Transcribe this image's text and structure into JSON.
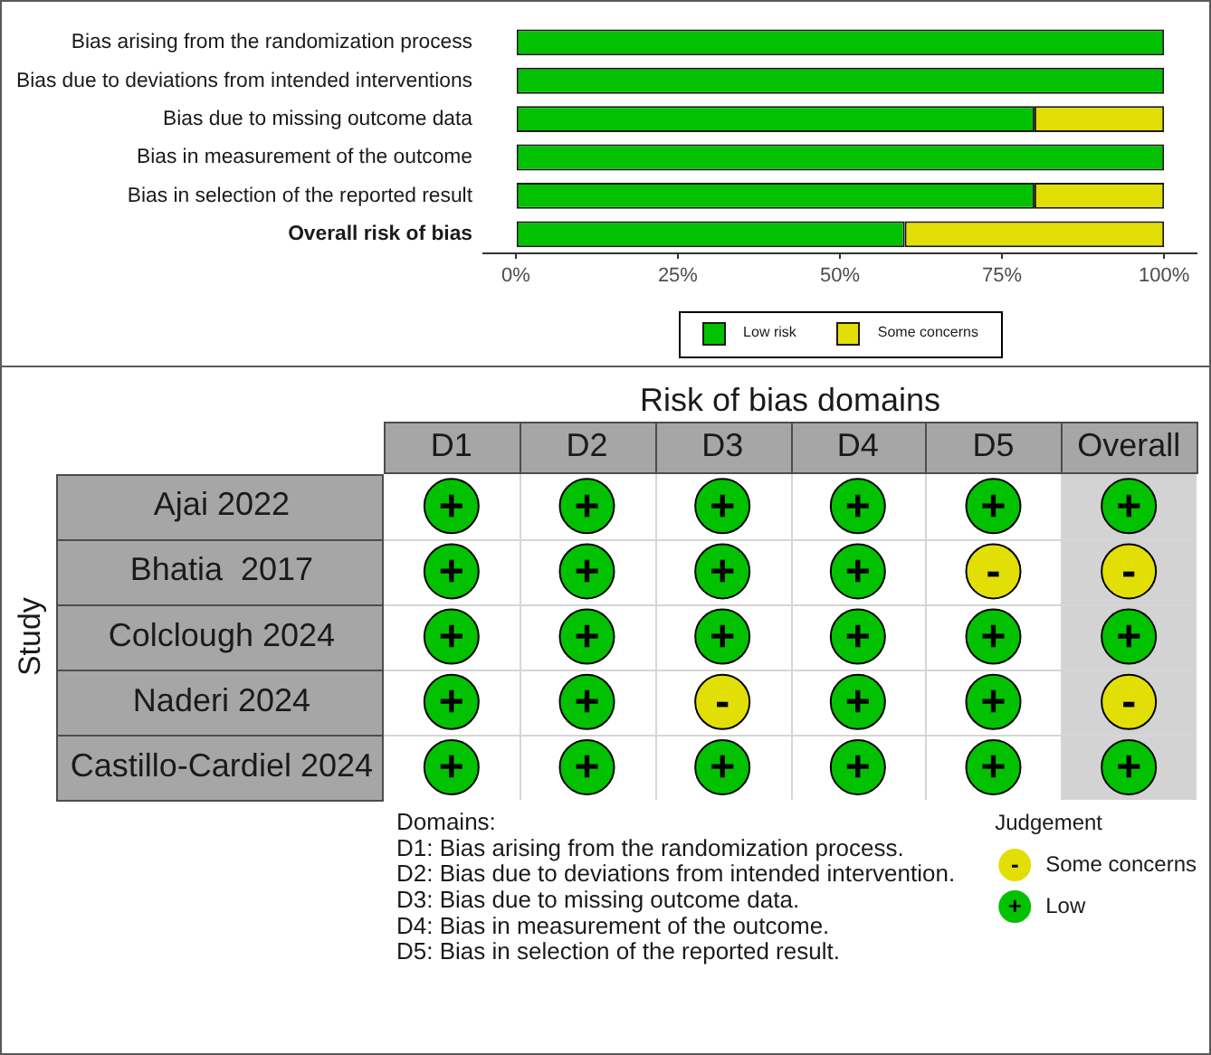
{
  "chart_data": [
    {
      "type": "bar",
      "orientation": "horizontal",
      "stacked": true,
      "categories": [
        "Bias arising from the randomization process",
        "Bias due to deviations from intended interventions",
        "Bias due to missing outcome data",
        "Bias in measurement of the outcome",
        "Bias in selection of the reported result",
        "Overall risk of bias"
      ],
      "series": [
        {
          "name": "Low risk",
          "color": "#02c100",
          "values": [
            100,
            100,
            80,
            100,
            80,
            60
          ]
        },
        {
          "name": "Some concerns",
          "color": "#e2df07",
          "values": [
            0,
            0,
            20,
            0,
            20,
            40
          ]
        }
      ],
      "xlim": [
        -5,
        105
      ],
      "xticks": [
        {
          "value": 0,
          "label": "0%"
        },
        {
          "value": 25,
          "label": "25%"
        },
        {
          "value": 50,
          "label": "50%"
        },
        {
          "value": 75,
          "label": "75%"
        },
        {
          "value": 100,
          "label": "100%"
        }
      ],
      "grid": false,
      "legend": "bottom"
    },
    {
      "type": "heatmap",
      "title": "Risk of bias domains",
      "ylabel": "Study",
      "categories": [
        "D1",
        "D2",
        "D3",
        "D4",
        "D5",
        "Overall"
      ],
      "y_categories": [
        "Ajai 2022",
        "Bhatia  2017",
        "Colclough 2024",
        "Naderi 2024",
        "Castillo-Cardiel 2024"
      ],
      "cells": [
        [
          "+",
          "+",
          "+",
          "+",
          "+",
          "+"
        ],
        [
          "+",
          "+",
          "+",
          "+",
          "-",
          "-"
        ],
        [
          "+",
          "+",
          "+",
          "+",
          "+",
          "+"
        ],
        [
          "+",
          "+",
          "-",
          "+",
          "+",
          "-"
        ],
        [
          "+",
          "+",
          "+",
          "+",
          "+",
          "+"
        ]
      ],
      "colors": [
        [
          "#02c100",
          "#02c100",
          "#02c100",
          "#02c100",
          "#02c100",
          "#02c100"
        ],
        [
          "#02c100",
          "#02c100",
          "#02c100",
          "#02c100",
          "#e2df07",
          "#e2df07"
        ],
        [
          "#02c100",
          "#02c100",
          "#02c100",
          "#02c100",
          "#02c100",
          "#02c100"
        ],
        [
          "#02c100",
          "#02c100",
          "#e2df07",
          "#02c100",
          "#02c100",
          "#e2df07"
        ],
        [
          "#02c100",
          "#02c100",
          "#02c100",
          "#02c100",
          "#02c100",
          "#02c100"
        ]
      ],
      "clabel": "Judgement",
      "cticks": [
        {
          "value": "-",
          "label": "Some concerns"
        },
        {
          "value": "+",
          "label": "Low"
        }
      ],
      "bands": [
        {
          "axis": "x",
          "from": "Overall",
          "to": "Overall",
          "color": "#d3d3d3"
        }
      ],
      "annotations": [
        "Domains:",
        "D1: Bias arising from the randomization process.",
        "D2: Bias due to deviations from intended intervention.",
        "D3: Bias due to missing outcome data.",
        "D4: Bias in measurement of the outcome.",
        "D5: Bias in selection of the reported result."
      ]
    }
  ]
}
